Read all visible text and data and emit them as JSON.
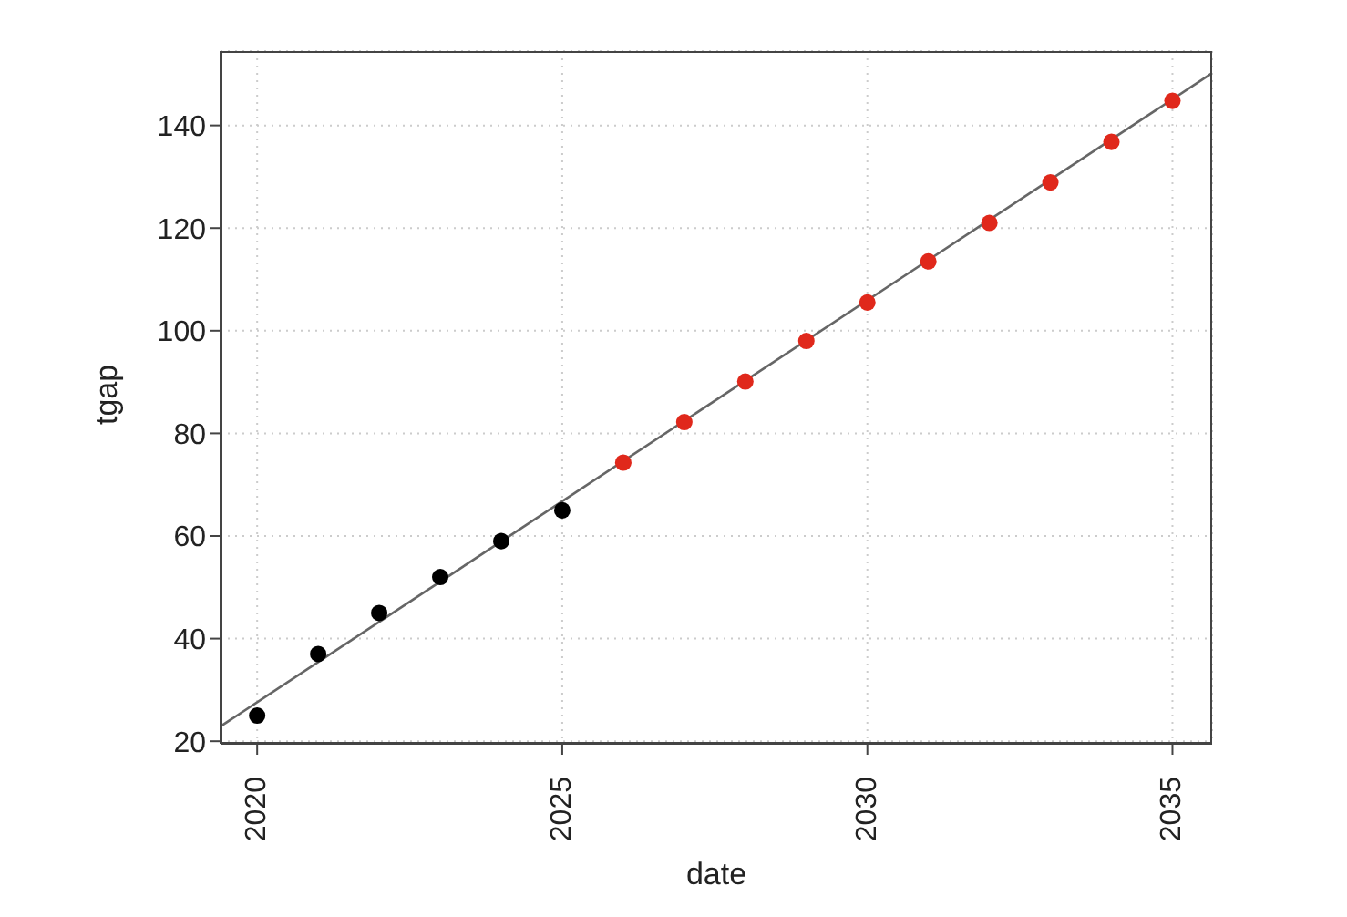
{
  "chart_data": {
    "type": "scatter",
    "xlabel": "date",
    "ylabel": "tgap",
    "xlim": [
      2019.4,
      2035.65
    ],
    "ylim": [
      19.5,
      154.5
    ],
    "xticks": [
      2020,
      2025,
      2030,
      2035
    ],
    "yticks": [
      20,
      40,
      60,
      80,
      100,
      120,
      140
    ],
    "grid": true,
    "marker": "circle",
    "series": [
      {
        "color": "#000000",
        "x": [
          2020,
          2021,
          2022,
          2023,
          2024,
          2025
        ],
        "values": [
          25,
          37,
          45,
          52,
          59,
          65
        ]
      },
      {
        "color": "#e0281b",
        "x": [
          2026,
          2027,
          2028,
          2029,
          2030,
          2031,
          2032,
          2033,
          2034,
          2035
        ],
        "values": [
          74.3,
          82.2,
          90.1,
          98,
          105.5,
          113.5,
          121,
          128.9,
          136.8,
          144.8
        ]
      },
      {
        "type": "line",
        "color": "#666666",
        "line_style": "solid",
        "marker": "none",
        "x": [
          2019.4,
          2035.65
        ],
        "values": [
          22.9,
          150.2
        ]
      }
    ]
  }
}
